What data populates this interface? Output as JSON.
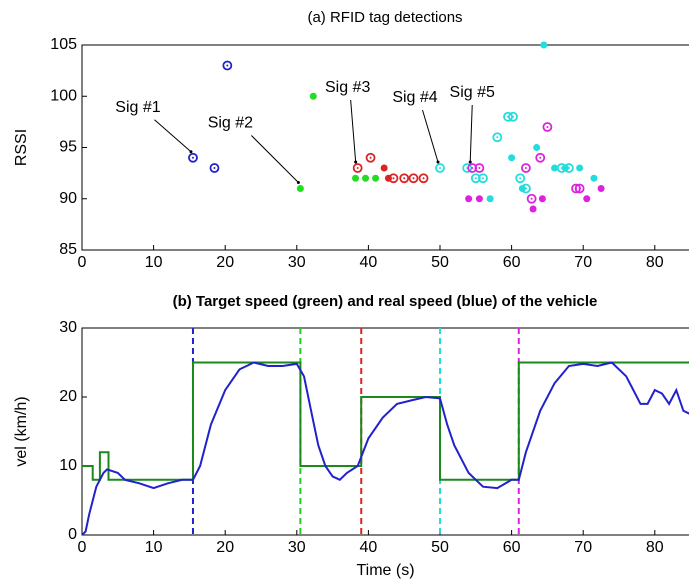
{
  "chart_data": [
    {
      "type": "scatter",
      "title": "(a) RFID tag detections",
      "ylabel": "RSSI",
      "xlim": [
        0,
        85
      ],
      "ylim": [
        85,
        105
      ],
      "xticks": [
        0,
        10,
        20,
        30,
        40,
        50,
        60,
        70,
        80
      ],
      "yticks": [
        85,
        90,
        95,
        100,
        105
      ],
      "series": [
        {
          "color": "#2222cc",
          "marker": "ring",
          "x": [
            15.5,
            18.5,
            20.3
          ],
          "values": [
            94,
            93,
            103
          ]
        },
        {
          "color": "#22dd22",
          "marker": "dot",
          "x": [
            30.5,
            32.3,
            38.2,
            39.6,
            41
          ],
          "values": [
            91,
            100,
            92,
            92,
            92
          ]
        },
        {
          "color": "#dd2222",
          "marker": "ring",
          "x": [
            38.5,
            40.3,
            43.5,
            45,
            46.3,
            47.7
          ],
          "values": [
            93,
            94,
            92,
            92,
            92,
            92
          ]
        },
        {
          "color": "#dd2222",
          "marker": "dot",
          "x": [
            42.2,
            42.8
          ],
          "values": [
            93,
            92
          ]
        },
        {
          "color": "#22dddd",
          "marker": "ring",
          "x": [
            50,
            53.8,
            55,
            56,
            58,
            59.5,
            60.2,
            61.2,
            62,
            67,
            68
          ],
          "values": [
            93,
            93,
            92,
            92,
            96,
            98,
            98,
            92,
            91,
            93,
            93
          ]
        },
        {
          "color": "#22dddd",
          "marker": "dot",
          "x": [
            57,
            60,
            61.5,
            63.5,
            64.5,
            66,
            67.5,
            69.5,
            71.5
          ],
          "values": [
            90,
            94,
            91,
            95,
            105,
            93,
            93,
            93,
            92
          ]
        },
        {
          "color": "#dd22dd",
          "marker": "ring",
          "x": [
            54.5,
            55.5,
            62,
            62.8,
            64,
            65,
            69,
            69.5
          ],
          "values": [
            93,
            93,
            93,
            90,
            94,
            97,
            91,
            91
          ]
        },
        {
          "color": "#dd22dd",
          "marker": "dot",
          "x": [
            54,
            55.5,
            63,
            64.3,
            70.5,
            72.5
          ],
          "values": [
            90,
            90,
            89,
            90,
            90,
            91
          ]
        }
      ],
      "annotations": [
        {
          "text": "Sig #1",
          "x": 15.5,
          "y": 94
        },
        {
          "text": "Sig #2",
          "x": 30.5,
          "y": 91
        },
        {
          "text": "Sig #3",
          "x": 38.5,
          "y": 93
        },
        {
          "text": "Sig #4",
          "x": 50,
          "y": 93
        },
        {
          "text": "Sig #5",
          "x": 54.5,
          "y": 93
        }
      ]
    },
    {
      "type": "line",
      "title": "(b) Target speed (green) and real speed (blue) of the vehicle",
      "xlabel": "Time (s)",
      "ylabel": "vel (km/h)",
      "xlim": [
        0,
        85
      ],
      "ylim": [
        0,
        30
      ],
      "xticks": [
        0,
        10,
        20,
        30,
        40,
        50,
        60,
        70,
        80
      ],
      "yticks": [
        0,
        10,
        20,
        30
      ],
      "vlines": [
        {
          "x": 15.5,
          "color": "#2222cc"
        },
        {
          "x": 30.5,
          "color": "#22cc22"
        },
        {
          "x": 39,
          "color": "#dd2222"
        },
        {
          "x": 50,
          "color": "#22dddd"
        },
        {
          "x": 61,
          "color": "#dd22dd"
        }
      ],
      "series": [
        {
          "color": "#1a8a1a",
          "x": [
            0,
            1.5,
            1.5,
            2.5,
            2.5,
            3.7,
            3.7,
            15.5,
            15.5,
            30.5,
            30.5,
            39,
            39,
            50,
            50,
            61,
            61,
            85
          ],
          "values": [
            10,
            10,
            8,
            8,
            12,
            12,
            8,
            8,
            25,
            25,
            10,
            10,
            20,
            20,
            8,
            8,
            25,
            25
          ]
        },
        {
          "color": "#2222cc",
          "x": [
            0,
            0.5,
            1,
            2,
            3,
            3.5,
            5,
            6,
            8,
            10,
            12,
            14,
            15.5,
            16.5,
            18,
            20,
            22,
            24,
            26,
            28,
            30,
            31,
            32,
            33,
            34,
            35,
            36,
            37,
            38.5,
            40,
            42,
            44,
            46,
            48,
            50,
            51,
            52,
            54,
            56,
            58,
            60,
            61,
            62,
            64,
            66,
            68,
            70,
            72,
            74,
            76,
            78,
            79,
            80,
            81,
            82,
            83,
            84,
            85
          ],
          "values": [
            0,
            0.5,
            3,
            7,
            9,
            9.5,
            9,
            8,
            7.5,
            6.8,
            7.5,
            8,
            8,
            10,
            16,
            21,
            24,
            25,
            24.5,
            24.5,
            24.8,
            23,
            18,
            13,
            10,
            8.5,
            8,
            9,
            10,
            14,
            17,
            19,
            19.5,
            20,
            19.8,
            16,
            13,
            9,
            7,
            6.8,
            8,
            8,
            12,
            18,
            22,
            24.5,
            24.8,
            24.5,
            25,
            23,
            19,
            19,
            21,
            20.5,
            19,
            21,
            18,
            17.5
          ]
        }
      ]
    }
  ]
}
